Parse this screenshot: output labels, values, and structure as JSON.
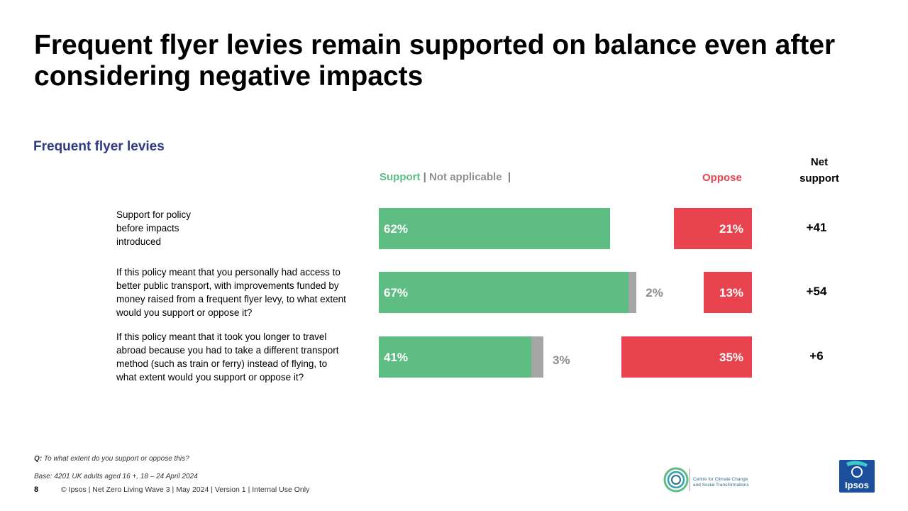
{
  "title": "Frequent flyer levies remain supported on balance even after considering negative impacts",
  "subtitle": "Frequent flyer levies",
  "legend": {
    "support": "Support",
    "sep1": " | ",
    "not_applicable": "Not applicable",
    "sep2": "  |",
    "oppose": "Oppose",
    "net_line1": "Net",
    "net_line2": "support"
  },
  "colors": {
    "support": "#5ebd83",
    "not_applicable": "#a6a6a6",
    "oppose": "#e8434f",
    "subtitle": "#2e3a87"
  },
  "chart_data": {
    "type": "bar",
    "orientation": "horizontal-stacked-diverging",
    "title": "Frequent flyer levies",
    "categories": [
      "Support for policy before impacts introduced",
      "If this policy meant that you personally had access to better public transport, with improvements funded by money raised from a frequent flyer levy, to what extent would you support or oppose it?",
      "If this policy meant that it took you longer to travel abroad because you had to take a different transport method (such as train or ferry) instead of flying, to what extent would you support or oppose it?"
    ],
    "series": [
      {
        "name": "Support",
        "values": [
          62,
          67,
          41
        ],
        "labels": [
          "62%",
          "67%",
          "41%"
        ]
      },
      {
        "name": "Not applicable",
        "values": [
          0,
          2,
          3
        ],
        "labels": [
          "",
          "2%",
          "3%"
        ]
      },
      {
        "name": "Oppose",
        "values": [
          21,
          13,
          35
        ],
        "labels": [
          "21%",
          "13%",
          "35%"
        ]
      }
    ],
    "net_support": [
      "+41",
      "+54",
      "+6"
    ],
    "unit": "%"
  },
  "rows": [
    {
      "label_lines": [
        "Support for policy",
        "before impacts",
        "introduced"
      ]
    },
    {
      "label_lines": [
        "If this policy meant that you personally had access to",
        "better public transport, with improvements funded by",
        "money raised from a frequent flyer levy, to what extent",
        "would you support or oppose it?"
      ]
    },
    {
      "label_lines": [
        "If this policy meant that it took you longer to travel",
        "abroad because you had to take a different transport",
        "method (such as train or ferry) instead of flying, to",
        "what extent would you support or oppose it?"
      ]
    }
  ],
  "question_prefix": "Q:",
  "question": " To what extent do you support or oppose this?",
  "base": "Base: 4201 UK adults aged 16 +, 18 – 24 April 2024",
  "page_number": "8",
  "footer": "© Ipsos | Net Zero Living Wave 3 | May 2024 | Version 1 | Internal Use Only",
  "logos": {
    "cct_line1": "Centre for Climate Change",
    "cct_line2": "and Social Transformations",
    "ipsos": "Ipsos"
  }
}
